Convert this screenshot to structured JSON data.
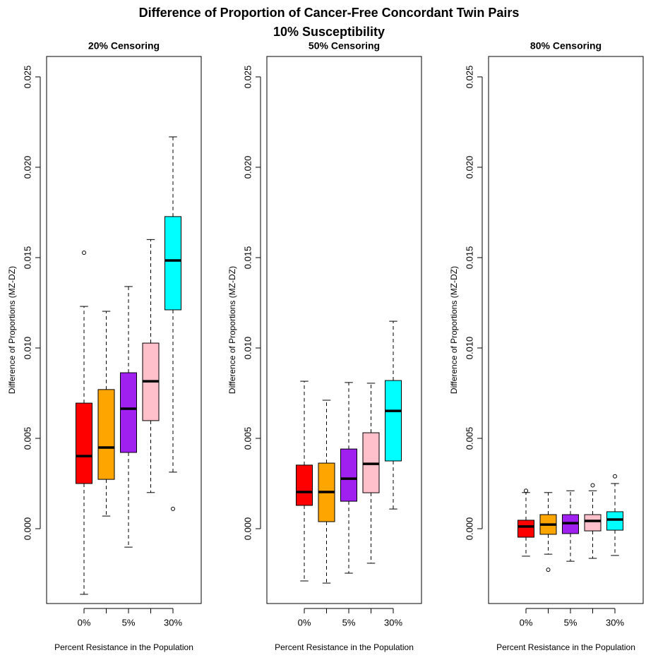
{
  "title": "Difference of Proportion of Cancer-Free Concordant Twin Pairs",
  "subtitle": "10% Susceptibility",
  "chart_data": [
    {
      "type": "box",
      "title": "20% Censoring",
      "xlabel": "Percent Resistance in the Population",
      "ylabel": "Difference of Proportions (MZ-DZ)",
      "categories": [
        "0%",
        null,
        "5%",
        null,
        "30%"
      ],
      "colors": [
        "#ff0000",
        "#ffa500",
        "#a020f0",
        "#ffc0cb",
        "#00ffff"
      ],
      "min": [
        -0.00363,
        0.0007,
        -0.00102,
        0.002,
        0.00313
      ],
      "q1": [
        0.0025,
        0.00273,
        0.00422,
        0.00598,
        0.01211
      ],
      "median": [
        0.00402,
        0.00449,
        0.00664,
        0.00816,
        0.01484
      ],
      "q3": [
        0.00695,
        0.0077,
        0.00863,
        0.01027,
        0.01727
      ],
      "max": [
        0.0123,
        0.01203,
        0.0134,
        0.016,
        0.02168
      ],
      "outliers": [
        [
          0.01527
        ],
        [],
        [],
        [],
        [
          0.0011
        ]
      ],
      "ylim": [
        -0.00414,
        0.02613
      ],
      "yticks": [
        {
          "value": 0,
          "label": "0.000"
        },
        {
          "value": 0.005,
          "label": "0.005"
        },
        {
          "value": 0.01,
          "label": "0.010"
        },
        {
          "value": 0.015,
          "label": "0.015"
        },
        {
          "value": 0.02,
          "label": "0.020"
        },
        {
          "value": 0.025,
          "label": "0.025"
        }
      ]
    },
    {
      "type": "box",
      "title": "50% Censoring",
      "xlabel": "Percent Resistance in the Population",
      "ylabel": "Difference of Proportions (MZ-DZ)",
      "categories": [
        "0%",
        null,
        "5%",
        null,
        "30%"
      ],
      "colors": [
        "#ff0000",
        "#ffa500",
        "#a020f0",
        "#ffc0cb",
        "#00ffff"
      ],
      "min": [
        -0.00289,
        -0.00301,
        -0.00246,
        -0.00191,
        0.00109
      ],
      "q1": [
        0.00129,
        0.00039,
        0.00152,
        0.00199,
        0.00375
      ],
      "median": [
        0.00203,
        0.00203,
        0.00277,
        0.00359,
        0.00652
      ],
      "q3": [
        0.00352,
        0.00363,
        0.00441,
        0.00531,
        0.0082
      ],
      "max": [
        0.00816,
        0.00711,
        0.00809,
        0.00805,
        0.01148
      ],
      "outliers": [
        [],
        [],
        [],
        [],
        []
      ],
      "ylim": [
        -0.00414,
        0.02613
      ],
      "yticks": [
        {
          "value": 0,
          "label": "0.000"
        },
        {
          "value": 0.005,
          "label": "0.005"
        },
        {
          "value": 0.01,
          "label": "0.010"
        },
        {
          "value": 0.015,
          "label": "0.015"
        },
        {
          "value": 0.02,
          "label": "0.020"
        },
        {
          "value": 0.025,
          "label": "0.025"
        }
      ]
    },
    {
      "type": "box",
      "title": "80% Censoring",
      "xlabel": "Percent Resistance in the Population",
      "ylabel": "Difference of Proportions (MZ-DZ)",
      "categories": [
        "0%",
        null,
        "5%",
        null,
        "30%"
      ],
      "colors": [
        "#ff0000",
        "#ffa500",
        "#a020f0",
        "#ffc0cb",
        "#00ffff"
      ],
      "min": [
        -0.00152,
        -0.00141,
        -0.0018,
        -0.00164,
        -0.00148
      ],
      "q1": [
        -0.00047,
        -0.00031,
        -0.00027,
        -0.00012,
        -8e-05
      ],
      "median": [
        0.00012,
        0.00023,
        0.00031,
        0.00043,
        0.00051
      ],
      "q3": [
        0.00047,
        0.00078,
        0.00078,
        0.00078,
        0.00094
      ],
      "max": [
        0.002,
        0.002,
        0.0021,
        0.0021,
        0.0025
      ],
      "outliers": [
        [
          0.0021
        ],
        [
          -0.00227
        ],
        [],
        [
          0.0024
        ],
        [
          0.0029
        ]
      ],
      "ylim": [
        -0.00414,
        0.02613
      ],
      "yticks": [
        {
          "value": 0,
          "label": "0.000"
        },
        {
          "value": 0.005,
          "label": "0.005"
        },
        {
          "value": 0.01,
          "label": "0.010"
        },
        {
          "value": 0.015,
          "label": "0.015"
        },
        {
          "value": 0.02,
          "label": "0.020"
        },
        {
          "value": 0.025,
          "label": "0.025"
        }
      ]
    }
  ]
}
